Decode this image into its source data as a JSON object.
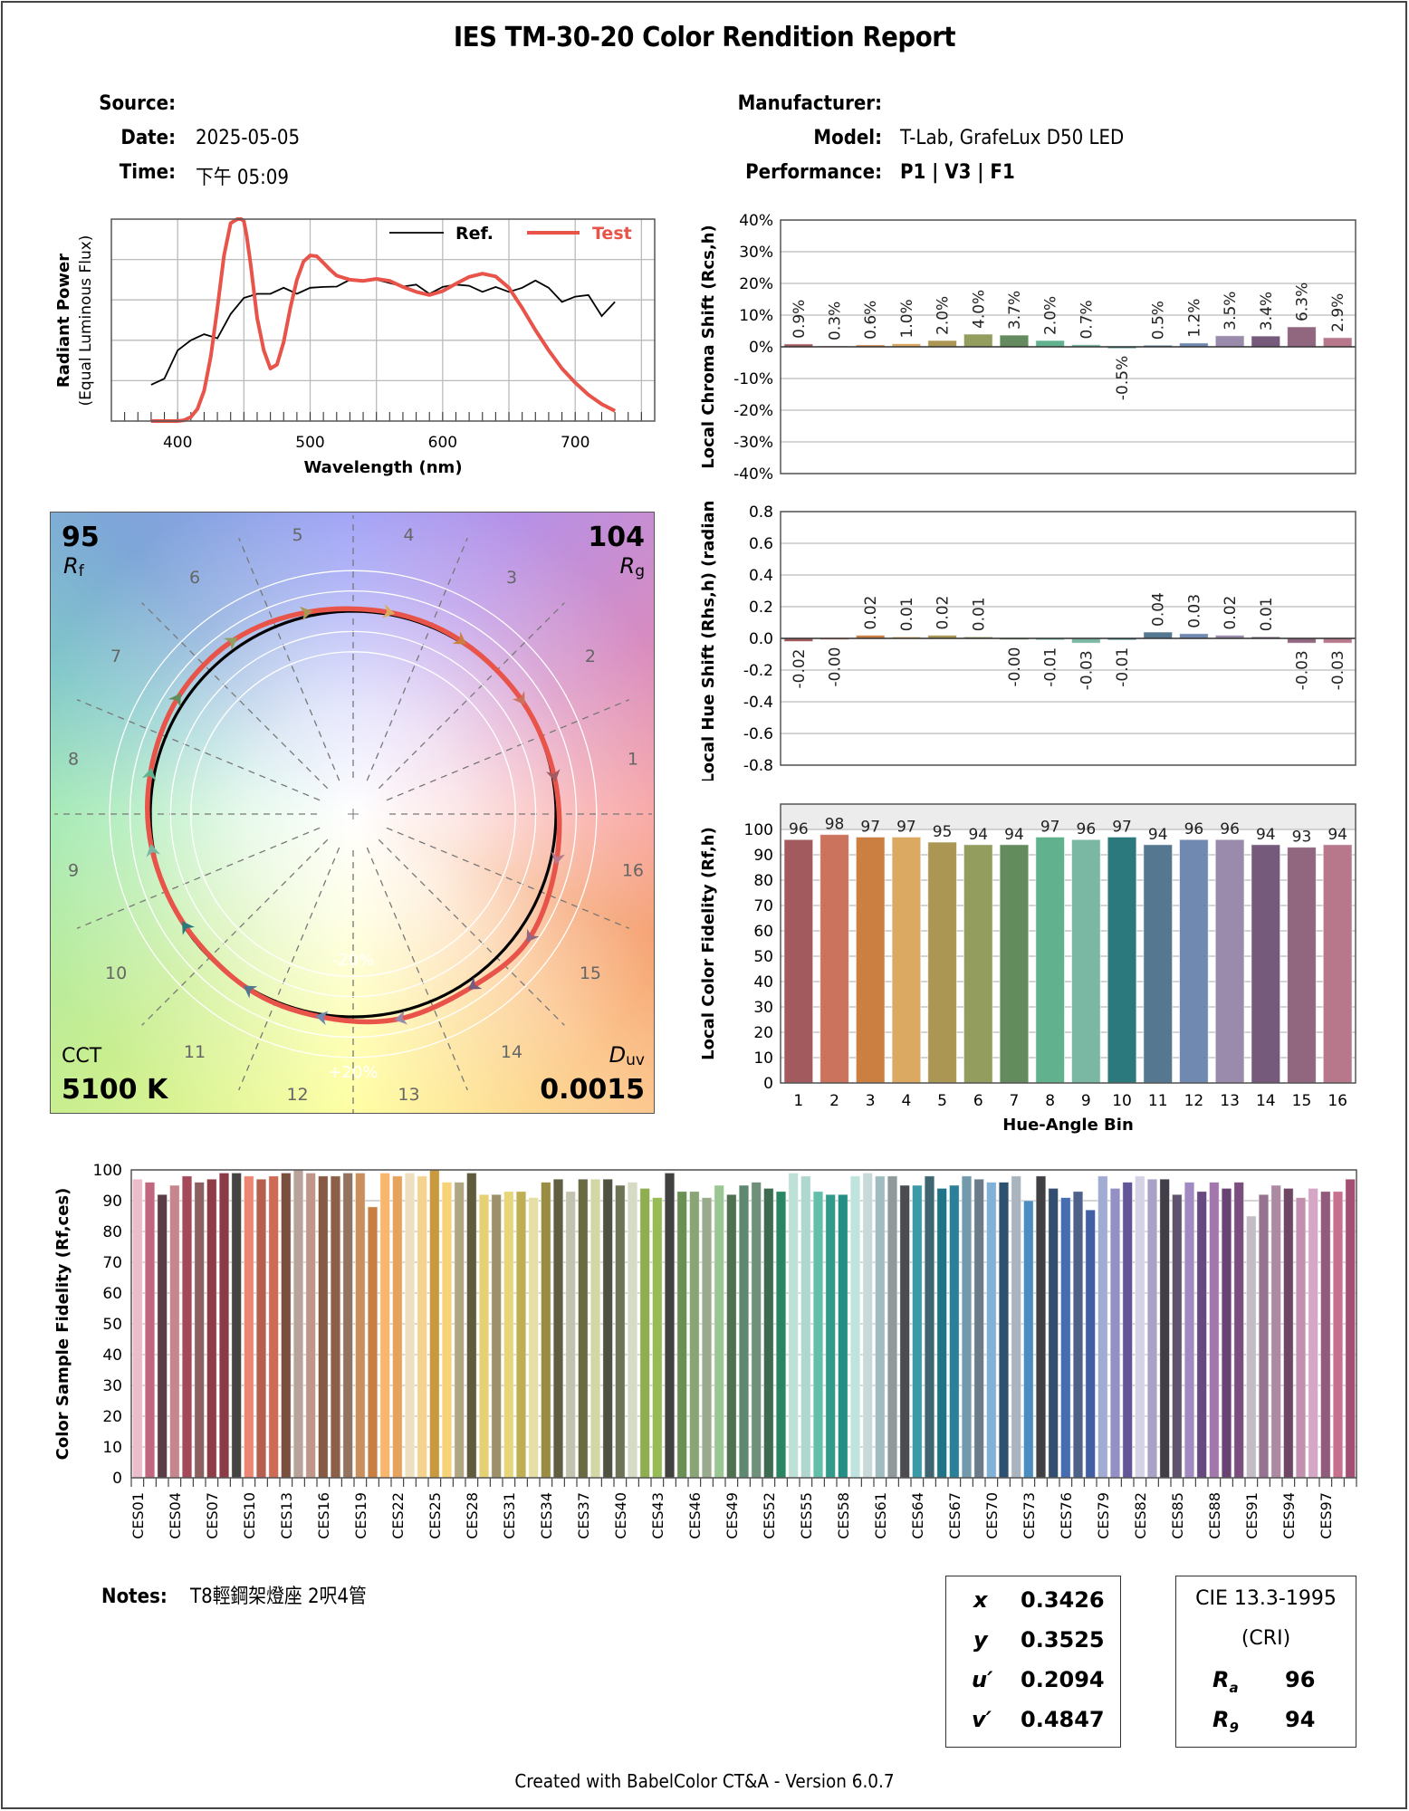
{
  "report": {
    "title": "IES TM-30-20 Color Rendition Report",
    "source_label": "Source:",
    "source_value": "",
    "date_label": "Date:",
    "date_value": "2025-05-05",
    "time_label": "Time:",
    "time_value": "下午 05:09",
    "manufacturer_label": "Manufacturer:",
    "manufacturer_value": "",
    "model_label": "Model:",
    "model_value": "T-Lab, GrafeLux D50 LED",
    "performance_label": "Performance:",
    "performance_value": "P1 | V3 | F1",
    "notes_label": "Notes:",
    "notes_value": "T8輕鋼架燈座 2呎4管",
    "footer": "Created with BabelColor CT&A - Version 6.0.7"
  },
  "metrics": {
    "rf_value": "95",
    "rf_label": "R",
    "rf_sub": "f",
    "rg_value": "104",
    "rg_label": "R",
    "rg_sub": "g",
    "cct_label": "CCT",
    "cct_value": "5100 K",
    "duv_label": "D",
    "duv_sub": "uv",
    "duv_value": "0.0015",
    "minus20": "-20%",
    "plus20": "+20%"
  },
  "chromaticity": {
    "x_label": "x",
    "x_value": "0.3426",
    "y_label": "y",
    "y_value": "0.3525",
    "u_label": "u′",
    "u_value": "0.2094",
    "v_label": "v′",
    "v_value": "0.4847"
  },
  "cri": {
    "title": "CIE 13.3-1995",
    "subtitle": "(CRI)",
    "ra_label": "R",
    "ra_sub": "a",
    "ra_value": "96",
    "r9_label": "R",
    "r9_sub": "9",
    "r9_value": "94"
  },
  "bin_colors": [
    "#a35a5f",
    "#cc735e",
    "#cb8042",
    "#dba962",
    "#ab9654",
    "#939d5d",
    "#648b5d",
    "#62b18e",
    "#7ab8a4",
    "#2b797c",
    "#557790",
    "#7089b0",
    "#9a8aab",
    "#765a7b",
    "#91667f",
    "#b8788b"
  ],
  "chart_data": [
    {
      "id": "spd",
      "type": "line",
      "title": "",
      "xlabel": "Wavelength (nm)",
      "ylabel": "Radiant Power",
      "ylabel2": "(Equal Luminous Flux)",
      "xlim": [
        350,
        760
      ],
      "xticks": [
        400,
        500,
        600,
        700
      ],
      "ylim": [
        0,
        5
      ],
      "grid": true,
      "legend": "top-right",
      "series": [
        {
          "name": "Ref.",
          "color": "#000000",
          "x": [
            380,
            390,
            400,
            410,
            420,
            430,
            440,
            450,
            460,
            470,
            480,
            490,
            500,
            510,
            520,
            530,
            540,
            550,
            560,
            570,
            580,
            590,
            600,
            610,
            620,
            630,
            640,
            650,
            660,
            670,
            680,
            690,
            700,
            710,
            720,
            730
          ],
          "y": [
            0.9,
            1.05,
            1.75,
            2.0,
            2.15,
            2.05,
            2.65,
            3.05,
            3.15,
            3.15,
            3.3,
            3.15,
            3.3,
            3.32,
            3.33,
            3.5,
            3.45,
            3.5,
            3.42,
            3.33,
            3.38,
            3.15,
            3.32,
            3.38,
            3.35,
            3.2,
            3.32,
            3.2,
            3.3,
            3.48,
            3.3,
            2.95,
            3.08,
            3.12,
            2.6,
            2.95
          ]
        },
        {
          "name": "Test",
          "color": "#e8534a",
          "x": [
            380,
            390,
            400,
            405,
            410,
            415,
            420,
            425,
            430,
            435,
            440,
            445,
            448,
            450,
            452,
            455,
            460,
            465,
            470,
            475,
            480,
            485,
            490,
            495,
            500,
            505,
            510,
            515,
            520,
            530,
            540,
            550,
            560,
            570,
            580,
            590,
            600,
            610,
            620,
            630,
            640,
            650,
            660,
            670,
            680,
            690,
            700,
            710,
            720,
            730
          ],
          "y": [
            0,
            0,
            0,
            0.02,
            0.1,
            0.3,
            0.75,
            1.6,
            2.8,
            4.1,
            4.9,
            5.0,
            5.0,
            4.95,
            4.6,
            3.9,
            2.55,
            1.75,
            1.3,
            1.4,
            1.95,
            2.8,
            3.5,
            3.95,
            4.1,
            4.08,
            3.92,
            3.75,
            3.6,
            3.5,
            3.47,
            3.52,
            3.47,
            3.32,
            3.2,
            3.12,
            3.22,
            3.4,
            3.57,
            3.65,
            3.58,
            3.3,
            2.8,
            2.25,
            1.75,
            1.3,
            0.95,
            0.65,
            0.42,
            0.25
          ]
        }
      ]
    },
    {
      "id": "chroma-shift",
      "type": "bar",
      "ylabel": "Local Chroma Shift (Rcs,h)",
      "ylim": [
        -40,
        40
      ],
      "yticks": [
        "-40%",
        "-30%",
        "-20%",
        "-10%",
        "0%",
        "10%",
        "20%",
        "30%",
        "40%"
      ],
      "categories": [
        "1",
        "2",
        "3",
        "4",
        "5",
        "6",
        "7",
        "8",
        "9",
        "10",
        "11",
        "12",
        "13",
        "14",
        "15",
        "16"
      ],
      "values": [
        0.9,
        0.3,
        0.6,
        1.0,
        2.0,
        4.0,
        3.7,
        2.0,
        0.7,
        -0.5,
        0.5,
        1.2,
        3.5,
        3.4,
        6.3,
        2.9
      ],
      "labels": [
        "0.9%",
        "0.3%",
        "0.6%",
        "1.0%",
        "2.0%",
        "4.0%",
        "3.7%",
        "2.0%",
        "0.7%",
        "-0.5%",
        "0.5%",
        "1.2%",
        "3.5%",
        "3.4%",
        "6.3%",
        "2.9%"
      ]
    },
    {
      "id": "hue-shift",
      "type": "bar",
      "ylabel": "Local Hue Shift (Rhs,h) (radian)",
      "ylim": [
        -0.8,
        0.8
      ],
      "yticks": [
        "-0.8",
        "-0.6",
        "-0.4",
        "-0.2",
        "0.0",
        "0.2",
        "0.4",
        "0.6",
        "0.8"
      ],
      "categories": [
        "1",
        "2",
        "3",
        "4",
        "5",
        "6",
        "7",
        "8",
        "9",
        "10",
        "11",
        "12",
        "13",
        "14",
        "15",
        "16"
      ],
      "values": [
        -0.02,
        -0.004,
        0.02,
        0.01,
        0.02,
        0.01,
        -0.004,
        -0.01,
        -0.03,
        -0.01,
        0.04,
        0.03,
        0.02,
        0.01,
        -0.03,
        -0.03
      ],
      "labels": [
        "-0.02",
        "-0.00",
        "0.02",
        "0.01",
        "0.02",
        "0.01",
        "-0.00",
        "-0.01",
        "-0.03",
        "-0.01",
        "0.04",
        "0.03",
        "0.02",
        "0.01",
        "-0.03",
        "-0.03"
      ]
    },
    {
      "id": "local-fidelity",
      "type": "bar",
      "xlabel": "Hue-Angle Bin",
      "ylabel": "Local Color Fidelity (Rf,h)",
      "ylim": [
        0,
        110
      ],
      "yticks": [
        "0",
        "10",
        "20",
        "30",
        "40",
        "50",
        "60",
        "70",
        "80",
        "90",
        "100"
      ],
      "categories": [
        "1",
        "2",
        "3",
        "4",
        "5",
        "6",
        "7",
        "8",
        "9",
        "10",
        "11",
        "12",
        "13",
        "14",
        "15",
        "16"
      ],
      "values": [
        96,
        98,
        97,
        97,
        95,
        94,
        94,
        97,
        96,
        97,
        94,
        96,
        96,
        94,
        93,
        94
      ],
      "labels": [
        "96",
        "98",
        "97",
        "97",
        "95",
        "94",
        "94",
        "97",
        "96",
        "97",
        "94",
        "96",
        "96",
        "94",
        "93",
        "94"
      ]
    },
    {
      "id": "ces-fidelity",
      "type": "bar",
      "ylabel": "Color Sample Fidelity (Rf,ces)",
      "ylim": [
        0,
        100
      ],
      "yticks": [
        "0",
        "10",
        "20",
        "30",
        "40",
        "50",
        "60",
        "70",
        "80",
        "90",
        "100"
      ],
      "tick_labels": [
        "CES01",
        "CES04",
        "CES07",
        "CES10",
        "CES13",
        "CES16",
        "CES19",
        "CES22",
        "CES25",
        "CES28",
        "CES31",
        "CES34",
        "CES37",
        "CES40",
        "CES43",
        "CES46",
        "CES49",
        "CES52",
        "CES55",
        "CES58",
        "CES61",
        "CES64",
        "CES67",
        "CES70",
        "CES73",
        "CES76",
        "CES79",
        "CES82",
        "CES85",
        "CES88",
        "CES91",
        "CES94",
        "CES97"
      ],
      "values": [
        97,
        96,
        92,
        95,
        98,
        96,
        97,
        99,
        99,
        98,
        97,
        98,
        99,
        100,
        99,
        98,
        98,
        99,
        99,
        88,
        99,
        98,
        99,
        98,
        100,
        96,
        96,
        99,
        92,
        92,
        93,
        93,
        91,
        96,
        97,
        93,
        97,
        97,
        97,
        95,
        96,
        94,
        91,
        99,
        93,
        93,
        91,
        95,
        92,
        95,
        96,
        94,
        93,
        99,
        98,
        93,
        92,
        92,
        98,
        99,
        98,
        98,
        95,
        95,
        98,
        94,
        95,
        98,
        97,
        96,
        96,
        98,
        90,
        98,
        94,
        91,
        93,
        87,
        98,
        94,
        96,
        98,
        97,
        97,
        92,
        96,
        93,
        96,
        94,
        96,
        85,
        92,
        95,
        94,
        91,
        94,
        93,
        93,
        97
      ],
      "colors": [
        "#ecbccb",
        "#c2657f",
        "#5b3d45",
        "#c5868e",
        "#a4485a",
        "#8c5f61",
        "#8f3c46",
        "#8a3b46",
        "#444442",
        "#ec8672",
        "#b75f4e",
        "#cf6a55",
        "#7b4f3e",
        "#b8a39a",
        "#c1968a",
        "#865a43",
        "#8b6047",
        "#91735f",
        "#c9905e",
        "#c97f42",
        "#f9b76d",
        "#e6a35e",
        "#eedfbf",
        "#f5d38f",
        "#c9993d",
        "#f8d276",
        "#b0a782",
        "#615b3d",
        "#e6d075",
        "#9e9068",
        "#e6d678",
        "#c0af52",
        "#e6dfa5",
        "#998d44",
        "#5f5f40",
        "#c3c2b0",
        "#6a6b42",
        "#d3d6a5",
        "#4f5141",
        "#6d7456",
        "#d6dbc6",
        "#8fae4f",
        "#98bc55",
        "#41423f",
        "#6a9055",
        "#89a576",
        "#99ab8c",
        "#9ac693",
        "#4f7150",
        "#5f8870",
        "#6f9179",
        "#3c6b50",
        "#298662",
        "#bde1d7",
        "#b0d7cf",
        "#61bfaa",
        "#319a8b",
        "#258e85",
        "#c1e3dd",
        "#c8d9d9",
        "#9fbdc0",
        "#909a9c",
        "#4a4c4f",
        "#3a9aa7",
        "#3e6670",
        "#1f7587",
        "#2a7f99",
        "#7299ac",
        "#6b7b88",
        "#82b1d6",
        "#2e5170",
        "#a9b4be",
        "#4b8dc1",
        "#3f4044",
        "#344e70",
        "#476db1",
        "#4d6189",
        "#425ea7",
        "#a1acd3",
        "#9290c4",
        "#635698",
        "#d4d3e5",
        "#a9a1c6",
        "#423e47",
        "#5f536e",
        "#a189c1",
        "#67487f",
        "#a477ac",
        "#694373",
        "#7b4e7f",
        "#c3bcc5",
        "#967390",
        "#ab8aa2",
        "#6f4664",
        "#c28fae",
        "#d5a6c6",
        "#935b7b",
        "#c7718f",
        "#a34f73"
      ]
    }
  ]
}
